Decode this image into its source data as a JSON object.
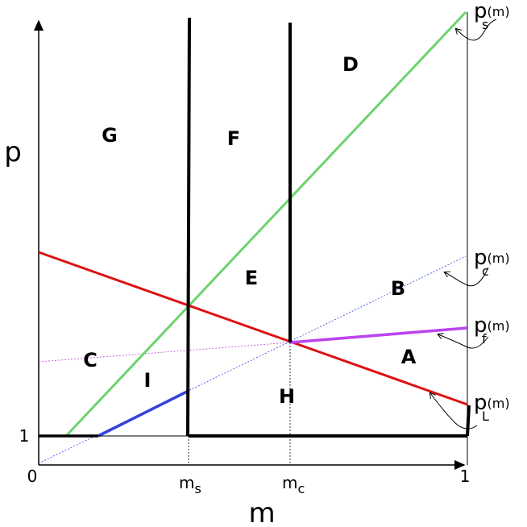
{
  "axes": {
    "y_label": "p",
    "x_label": "m",
    "origin": "0",
    "x_end": "1",
    "y_one": "1",
    "ms": {
      "base": "m",
      "sub": "s"
    },
    "mc": {
      "base": "m",
      "sub": "c"
    }
  },
  "regions": [
    "G",
    "F",
    "D",
    "E",
    "B",
    "C",
    "I",
    "H",
    "A"
  ],
  "curves": [
    {
      "base": "p",
      "sub": "s",
      "arg": "(m)"
    },
    {
      "base": "p",
      "sub": "c",
      "arg": "(m)"
    },
    {
      "base": "p",
      "sub": "f",
      "arg": "(m)"
    },
    {
      "base": "p",
      "sub": "L",
      "arg": "(m)"
    }
  ]
}
